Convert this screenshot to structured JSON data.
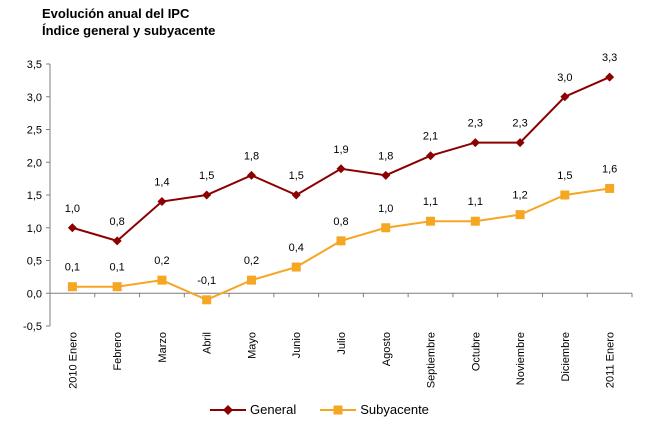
{
  "title_line1": "Evolución anual del IPC",
  "title_line2": "Índice general y subyacente",
  "chart_data": {
    "type": "line",
    "categories": [
      "2010 Enero",
      "Febrero",
      "Marzo",
      "Abril",
      "Mayo",
      "Junio",
      "Julio",
      "Agosto",
      "Septiembre",
      "Octubre",
      "Noviembre",
      "Diciembre",
      "2011 Enero"
    ],
    "series": [
      {
        "name": "General",
        "color": "#8B0000",
        "marker": "diamond",
        "values": [
          1.0,
          0.8,
          1.4,
          1.5,
          1.8,
          1.5,
          1.9,
          1.8,
          2.1,
          2.3,
          2.3,
          3.0,
          3.3
        ],
        "labels": [
          "1,0",
          "0,8",
          "1,4",
          "1,5",
          "1,8",
          "1,5",
          "1,9",
          "1,8",
          "2,1",
          "2,3",
          "2,3",
          "3,0",
          "3,3"
        ]
      },
      {
        "name": "Subyacente",
        "color": "#F5A623",
        "marker": "square",
        "values": [
          0.1,
          0.1,
          0.2,
          -0.1,
          0.2,
          0.4,
          0.8,
          1.0,
          1.1,
          1.1,
          1.2,
          1.5,
          1.6
        ],
        "labels": [
          "0,1",
          "0,1",
          "0,2",
          "-0,1",
          "0,2",
          "0,4",
          "0,8",
          "1,0",
          "1,1",
          "1,1",
          "1,2",
          "1,5",
          "1,6"
        ]
      }
    ],
    "ylim": [
      -0.5,
      3.5
    ],
    "yticks": [
      "-0,5",
      "0,0",
      "0,5",
      "1,0",
      "1,5",
      "2,0",
      "2,5",
      "3,0",
      "3,5"
    ],
    "grid": false,
    "legend_position": "bottom"
  }
}
